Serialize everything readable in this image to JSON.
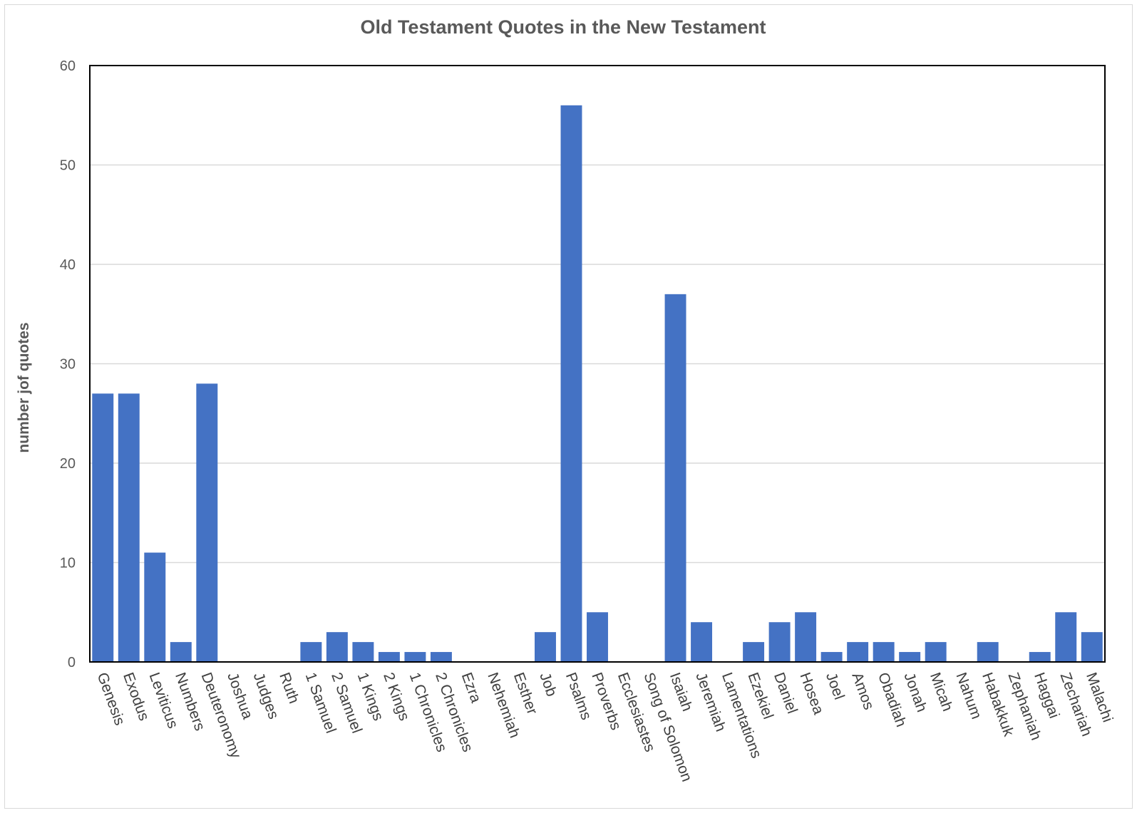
{
  "chart_data": {
    "type": "bar",
    "title": "Old Testament Quotes in the New Testament",
    "xlabel": "",
    "ylabel": "number jof quotes",
    "ylim": [
      0,
      60
    ],
    "yticks": [
      0,
      10,
      20,
      30,
      40,
      50,
      60
    ],
    "grid": true,
    "bar_color": "#4472C4",
    "categories": [
      "Genesis",
      "Exodus",
      "Leviticus",
      "Numbers",
      "Deuteronomy",
      "Joshua",
      "Judges",
      "Ruth",
      "1 Samuel",
      "2 Samuel",
      "1 Kings",
      "2 Kings",
      "1 Chronicles",
      "2 Chronicles",
      "Ezra",
      "Nehemiah",
      "Esther",
      "Job",
      "Psalms",
      "Proverbs",
      "Ecclesiastes",
      "Song of Solomon",
      "Isaiah",
      "Jeremiah",
      "Lamentations",
      "Ezekiel",
      "Daniel",
      "Hosea",
      "Joel",
      "Amos",
      "Obadiah",
      "Jonah",
      "Micah",
      "Nahum",
      "Habakkuk",
      "Zephaniah",
      "Haggai",
      "Zechariah",
      "Malachi"
    ],
    "values": [
      27,
      27,
      11,
      2,
      28,
      0,
      0,
      0,
      2,
      3,
      2,
      1,
      1,
      1,
      0,
      0,
      0,
      3,
      56,
      5,
      0,
      0,
      37,
      4,
      0,
      2,
      4,
      5,
      1,
      2,
      2,
      1,
      2,
      0,
      2,
      0,
      1,
      5,
      3
    ]
  }
}
